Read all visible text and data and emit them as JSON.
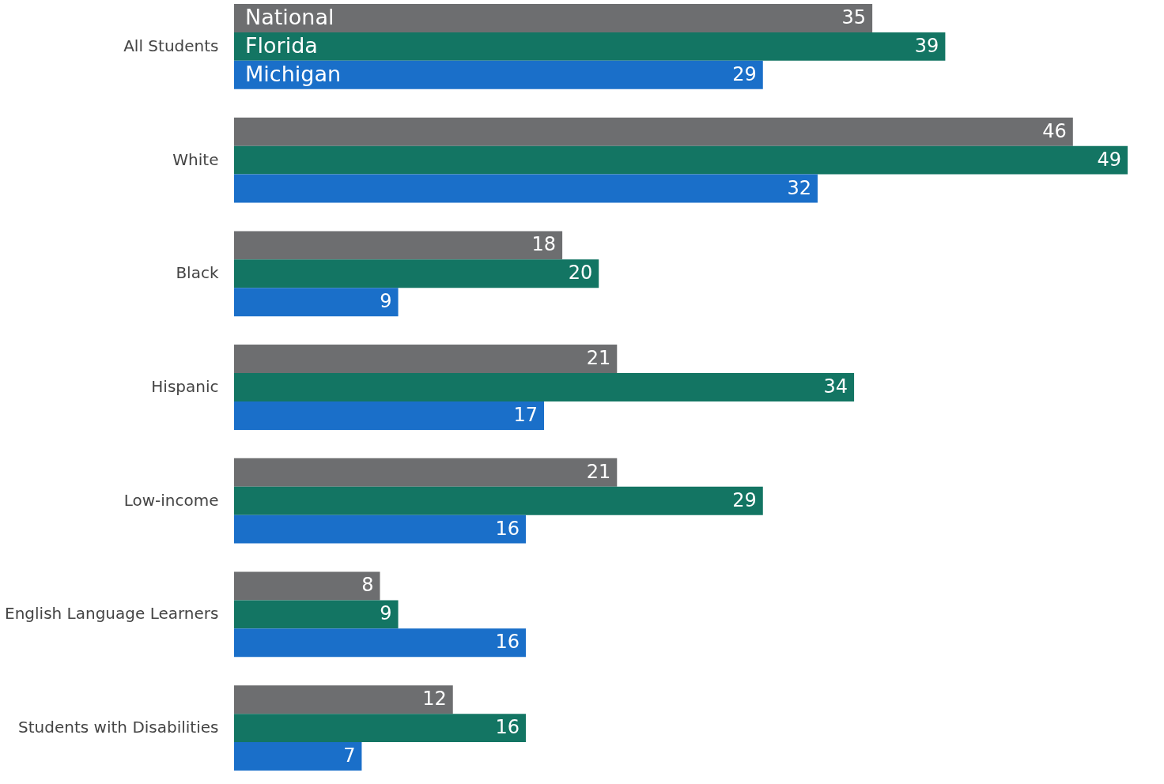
{
  "chart_data": {
    "type": "bar",
    "orientation": "horizontal",
    "data_labels": true,
    "categories": [
      "All Students",
      "White",
      "Black",
      "Hispanic",
      "Low-income",
      "English Language Learners",
      "Students with Disabilities"
    ],
    "series": [
      {
        "name": "National",
        "color": "#6d6e70",
        "values": [
          35,
          46,
          18,
          21,
          21,
          8,
          12
        ]
      },
      {
        "name": "Florida",
        "color": "#137563",
        "values": [
          39,
          49,
          20,
          34,
          29,
          9,
          16
        ]
      },
      {
        "name": "Michigan",
        "color": "#1a6fc9",
        "values": [
          29,
          32,
          9,
          17,
          16,
          16,
          7
        ]
      }
    ]
  }
}
